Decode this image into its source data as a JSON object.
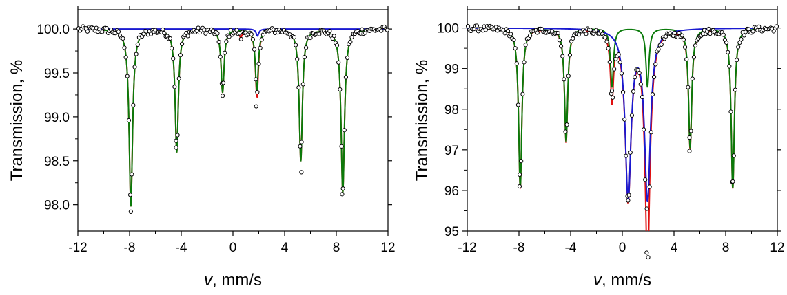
{
  "chart_data": [
    {
      "type": "scatter",
      "panel": "left",
      "xlabel": "v, mm/s",
      "ylabel": "Transmission, %",
      "xlim": [
        -12,
        12
      ],
      "ylim": [
        97.7,
        100.22
      ],
      "xticks": [
        -12,
        -8,
        -4,
        0,
        4,
        8,
        12
      ],
      "yticks": [
        "98.0",
        "98.5",
        "99.0",
        "99.5",
        "100.0"
      ],
      "ytick_values": [
        98.0,
        98.5,
        99.0,
        99.5,
        100.0
      ],
      "grid": false,
      "legend": "none",
      "series": [
        {
          "color": "#0a7a0a",
          "role": "fit-sextet",
          "baseline": 100.0,
          "lines": [
            {
              "center": -7.9,
              "depth": 2.02,
              "width": 0.32
            },
            {
              "center": -4.35,
              "depth": 1.4,
              "width": 0.3
            },
            {
              "center": -0.8,
              "depth": 0.72,
              "width": 0.28
            },
            {
              "center": 1.85,
              "depth": 0.7,
              "width": 0.28
            },
            {
              "center": 5.25,
              "depth": 1.5,
              "width": 0.3
            },
            {
              "center": 8.5,
              "depth": 1.86,
              "width": 0.32
            }
          ]
        },
        {
          "color": "#1a1ad0",
          "role": "fit-doublet",
          "baseline": 100.0,
          "lines": [
            {
              "center": 1.9,
              "depth": 0.08,
              "width": 0.25
            }
          ]
        },
        {
          "color": "#e01010",
          "role": "fit-total",
          "baseline": 100.0,
          "lines": [
            {
              "center": 0.6,
              "depth": 0.08,
              "width": 0.25
            }
          ]
        },
        {
          "color": "#ffffff",
          "role": "experimental-points",
          "noise": 0.035,
          "outliers": [
            {
              "x": -7.9,
              "y": 97.92
            },
            {
              "x": 1.8,
              "y": 99.12
            },
            {
              "x": 5.3,
              "y": 98.37
            },
            {
              "x": 8.45,
              "y": 98.12
            },
            {
              "x": -4.4,
              "y": 98.65
            },
            {
              "x": -0.8,
              "y": 99.24
            }
          ]
        }
      ]
    },
    {
      "type": "scatter",
      "panel": "right",
      "xlabel": "v, mm/s",
      "ylabel": "Transmission, %",
      "xlim": [
        -12,
        12
      ],
      "ylim": [
        95,
        100.45
      ],
      "xticks": [
        -12,
        -8,
        -4,
        0,
        4,
        8,
        12
      ],
      "yticks": [
        "95",
        "96",
        "97",
        "98",
        "99",
        "100"
      ],
      "ytick_values": [
        95,
        96,
        97,
        98,
        99,
        100
      ],
      "grid": false,
      "legend": "none",
      "series": [
        {
          "color": "#0a7a0a",
          "role": "fit-sextet",
          "baseline": 100.0,
          "lines": [
            {
              "center": -7.9,
              "depth": 3.95,
              "width": 0.3
            },
            {
              "center": -4.35,
              "depth": 2.8,
              "width": 0.3
            },
            {
              "center": -0.8,
              "depth": 1.45,
              "width": 0.28
            },
            {
              "center": 1.95,
              "depth": 1.45,
              "width": 0.28
            },
            {
              "center": 5.25,
              "depth": 2.95,
              "width": 0.3
            },
            {
              "center": 8.55,
              "depth": 3.95,
              "width": 0.3
            }
          ]
        },
        {
          "color": "#1a1ad0",
          "role": "fit-doublet",
          "baseline": 100.0,
          "lines": [
            {
              "center": 0.45,
              "depth": 4.15,
              "width": 0.55
            },
            {
              "center": 1.95,
              "depth": 4.15,
              "width": 0.55
            }
          ]
        },
        {
          "color": "#e01010",
          "role": "fit-total",
          "baseline": 100.0,
          "lines": [
            {
              "center": -0.8,
              "depth": 0.2,
              "width": 0.3
            },
            {
              "center": 1.95,
              "depth": 0.3,
              "width": 0.25
            }
          ]
        },
        {
          "color": "#ffffff",
          "role": "experimental-points",
          "noise": 0.07,
          "outliers": [
            {
              "x": -7.95,
              "y": 96.1
            },
            {
              "x": 0.45,
              "y": 95.75
            },
            {
              "x": 1.9,
              "y": 95.55
            },
            {
              "x": 8.55,
              "y": 96.22
            },
            {
              "x": -0.8,
              "y": 98.45
            },
            {
              "x": 5.2,
              "y": 96.97
            }
          ]
        }
      ]
    }
  ]
}
